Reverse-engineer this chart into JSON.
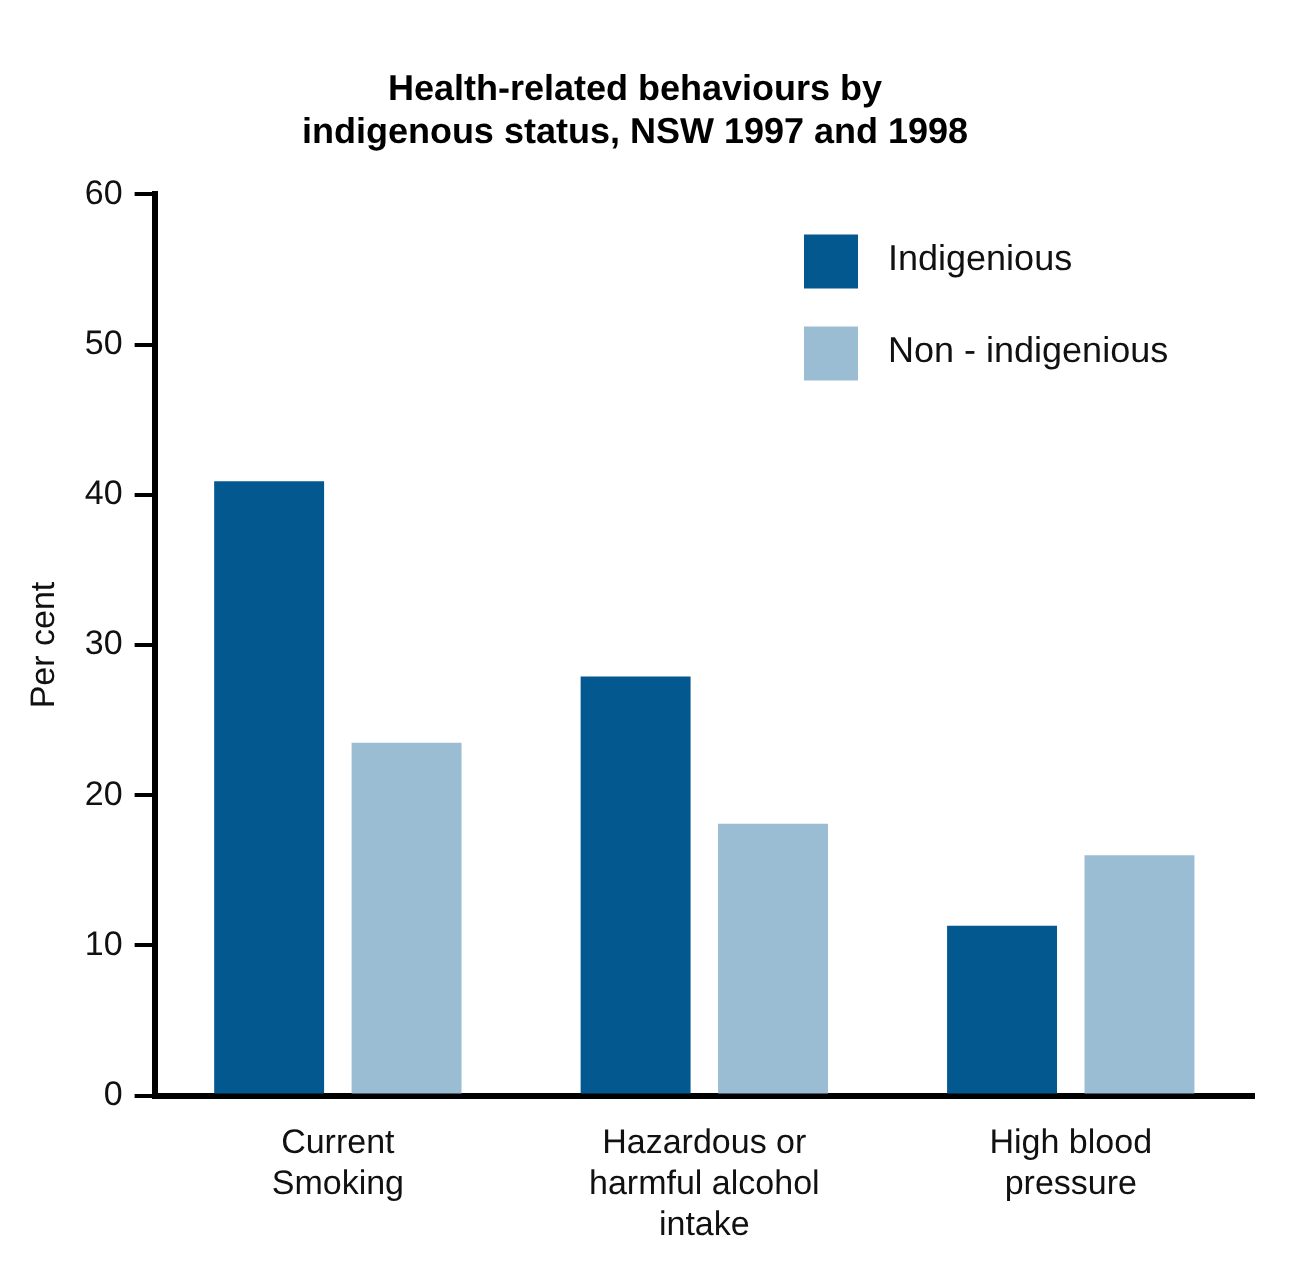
{
  "chart_data": {
    "type": "bar",
    "title": "Health-related behaviours by\nindigenous status, NSW 1997 and 1998",
    "ylabel": "Per cent",
    "categories": [
      "Current Smoking",
      "Hazardous or harmful alcohol intake",
      "High blood pressure"
    ],
    "series": [
      {
        "name": "Indigenious",
        "color": "#035890",
        "values": [
          40.9,
          27.9,
          11.3
        ]
      },
      {
        "name": "Non - indigenious",
        "color": "#9bbdd4",
        "values": [
          23.5,
          18.1,
          16.0
        ]
      }
    ],
    "ylim": [
      0,
      60
    ],
    "yticks": [
      0,
      10,
      20,
      30,
      40,
      50,
      60
    ],
    "grid": false,
    "legend": "top right"
  }
}
